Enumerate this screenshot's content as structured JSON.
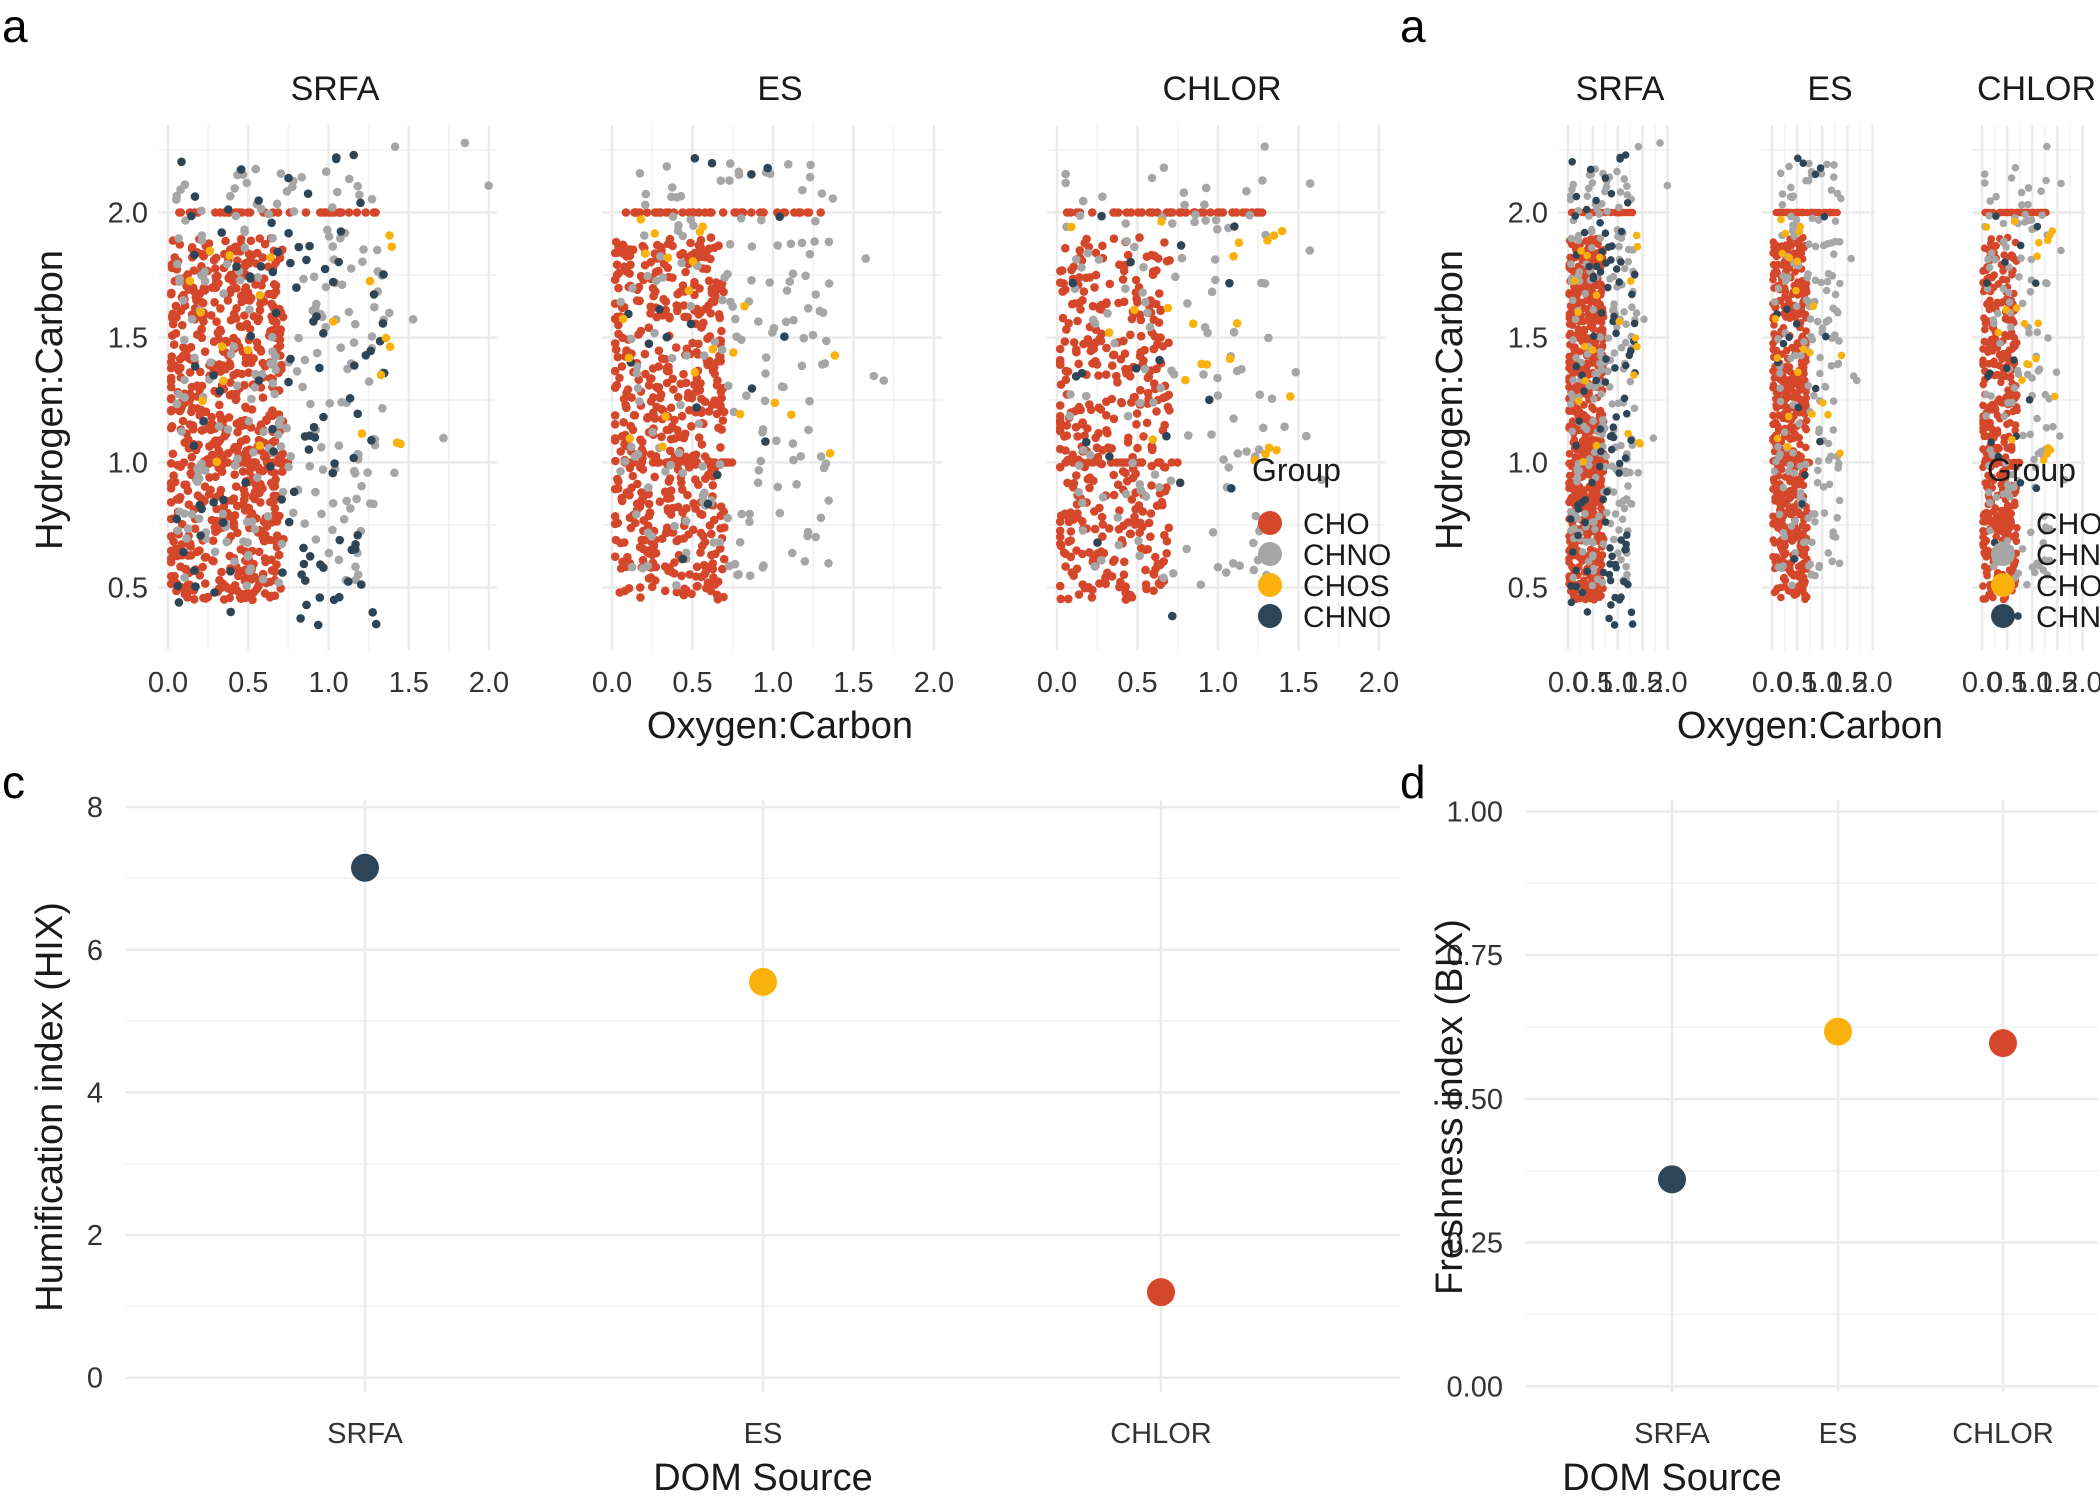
{
  "colors": {
    "CHO": "#d5472a",
    "CHNO_gray": "#a6a6a6",
    "CHOS": "#fbb10c",
    "CHNO_dark": "#2d4556",
    "grid": "#ebebeb"
  },
  "chart_data": [
    {
      "panel_label": "a",
      "type": "scatter",
      "facets": [
        "SRFA",
        "ES",
        "CHLOR"
      ],
      "xlabel": "Oxygen:Carbon",
      "ylabel": "Hydrogen:Carbon",
      "xlim": [
        0,
        2.05
      ],
      "ylim": [
        0.25,
        2.35
      ],
      "x_ticks": [
        0.0,
        0.5,
        1.0,
        1.5,
        2.0
      ],
      "x_tick_labels": [
        "0.0",
        "0.5",
        "1.0",
        "1.5",
        "2.0"
      ],
      "y_ticks": [
        0.5,
        1.0,
        1.5,
        2.0
      ],
      "y_tick_labels": [
        "0.5",
        "1.0",
        "1.5",
        "2.0"
      ],
      "grid": true,
      "legend": {
        "title": "Group",
        "position": "right",
        "entries": [
          {
            "label": "CHO",
            "color": "#d5472a"
          },
          {
            "label": "CHNO",
            "color": "#a6a6a6"
          },
          {
            "label": "CHOS",
            "color": "#fbb10c"
          },
          {
            "label": "CHNO",
            "color": "#2d4556"
          }
        ]
      }
    },
    {
      "panel_label": "a",
      "type": "scatter",
      "facets": [
        "SRFA",
        "ES",
        "CHLOR"
      ],
      "xlabel": "Oxygen:Carbon",
      "ylabel": "Hydrogen:Carbon",
      "xlim": [
        0,
        2.05
      ],
      "ylim": [
        0.25,
        2.35
      ],
      "x_ticks": [
        0.0,
        0.5,
        1.0,
        1.5,
        2.0
      ],
      "x_tick_labels": [
        "0.0",
        "0.5",
        "1.0",
        "1.5",
        "2.0"
      ],
      "y_ticks": [
        0.5,
        1.0,
        1.5,
        2.0
      ],
      "y_tick_labels": [
        "0.5",
        "1.0",
        "1.5",
        "2.0"
      ],
      "grid": true,
      "legend": {
        "title": "Group",
        "position": "right",
        "entries": [
          {
            "label": "CHO",
            "color": "#d5472a"
          },
          {
            "label": "CHNO",
            "color": "#a6a6a6"
          },
          {
            "label": "CHOS",
            "color": "#fbb10c"
          },
          {
            "label": "CHNO",
            "color": "#2d4556"
          }
        ]
      }
    },
    {
      "panel_label": "c",
      "type": "scatter",
      "categories": [
        "SRFA",
        "ES",
        "CHLOR"
      ],
      "values": [
        7.15,
        5.55,
        1.2
      ],
      "colors": [
        "#2d4556",
        "#fbb10c",
        "#d5472a"
      ],
      "xlabel": "DOM Source",
      "ylabel": "Humification index (HIX)",
      "ylim": [
        -0.2,
        8.1
      ],
      "y_ticks": [
        0,
        2,
        4,
        6,
        8
      ],
      "y_tick_labels": [
        "0",
        "2",
        "4",
        "6",
        "8"
      ],
      "grid": true
    },
    {
      "panel_label": "d",
      "type": "scatter",
      "categories": [
        "SRFA",
        "ES",
        "CHLOR"
      ],
      "values": [
        0.36,
        0.617,
        0.597
      ],
      "colors": [
        "#2d4556",
        "#fbb10c",
        "#d5472a"
      ],
      "xlabel": "DOM Source",
      "ylabel": "Freshness index (BIX)",
      "ylim": [
        -0.01,
        1.02
      ],
      "y_ticks": [
        0.0,
        0.25,
        0.5,
        0.75,
        1.0
      ],
      "y_tick_labels": [
        "0.00",
        "0.25",
        "0.50",
        "0.75",
        "1.00"
      ],
      "grid": true
    }
  ]
}
